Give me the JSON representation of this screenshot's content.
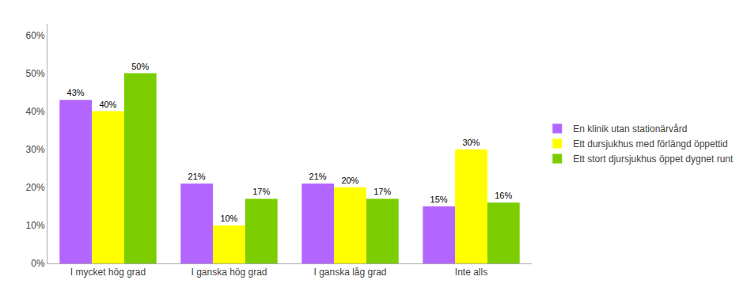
{
  "chart_data": {
    "type": "bar",
    "categories": [
      "I mycket hög grad",
      "I ganska hög grad",
      "I ganska låg grad",
      "Inte alls"
    ],
    "series": [
      {
        "name": "En klinik utan stationärvård",
        "color": "#b366ff",
        "values": [
          43,
          21,
          21,
          15
        ],
        "value_labels": [
          "43%",
          "21%",
          "21%",
          "15%"
        ]
      },
      {
        "name": "Ett dursjukhus med förlängd öppettid",
        "color": "#ffff00",
        "values": [
          40,
          10,
          20,
          30
        ],
        "value_labels": [
          "40%",
          "10%",
          "20%",
          "30%"
        ]
      },
      {
        "name": "Ett stort djursjukhus öppet dygnet runt",
        "color": "#7ccd00",
        "values": [
          50,
          17,
          17,
          16
        ],
        "value_labels": [
          "50%",
          "17%",
          "17%",
          "16%"
        ]
      }
    ],
    "ylim": [
      0,
      63
    ],
    "yticks": [
      {
        "value": 0,
        "label": "0%"
      },
      {
        "value": 10,
        "label": "10%"
      },
      {
        "value": 20,
        "label": "20%"
      },
      {
        "value": 30,
        "label": "30%"
      },
      {
        "value": 40,
        "label": "40%"
      },
      {
        "value": 50,
        "label": "50%"
      },
      {
        "value": 60,
        "label": "60%"
      }
    ],
    "grid": false,
    "legend": "right",
    "data_labels": true
  }
}
